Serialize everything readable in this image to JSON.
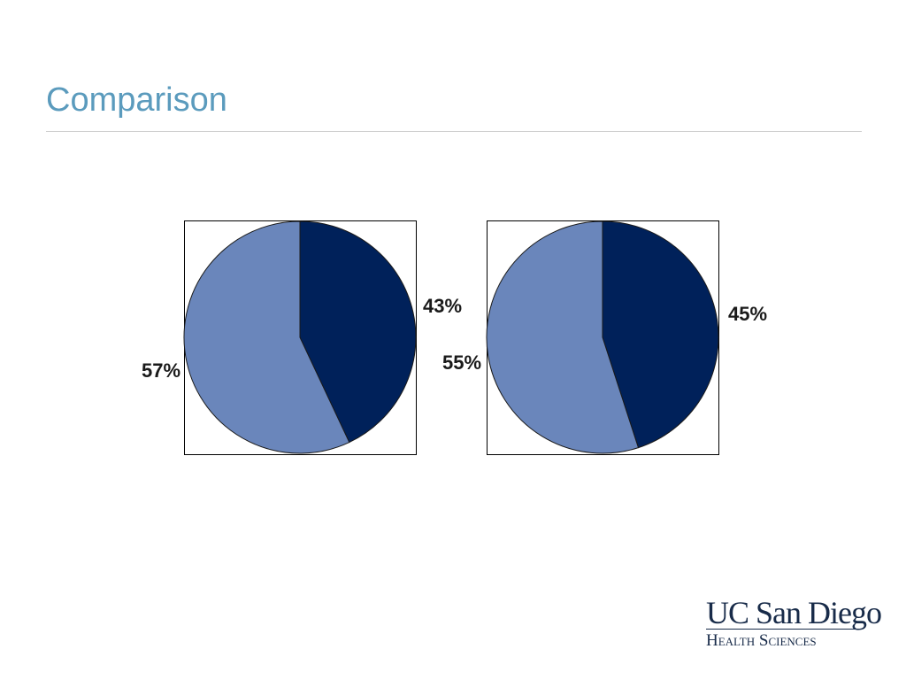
{
  "slide": {
    "title": "Comparison"
  },
  "logo": {
    "primary": "UC San Diego",
    "secondary": "Health Sciences",
    "color": "#182b49"
  },
  "colors": {
    "title": "#5b9bbd",
    "dark_slice": "#00215a",
    "light_slice": "#6a86bb"
  },
  "chart_data": [
    {
      "type": "pie",
      "title": "",
      "labels": [
        "",
        ""
      ],
      "values": [
        43,
        57
      ],
      "value_labels": [
        "43%",
        "57%"
      ],
      "colors": [
        "#00215a",
        "#6a86bb"
      ]
    },
    {
      "type": "pie",
      "title": "",
      "labels": [
        "",
        ""
      ],
      "values": [
        45,
        55
      ],
      "value_labels": [
        "45%",
        "55%"
      ],
      "colors": [
        "#00215a",
        "#6a86bb"
      ]
    }
  ]
}
